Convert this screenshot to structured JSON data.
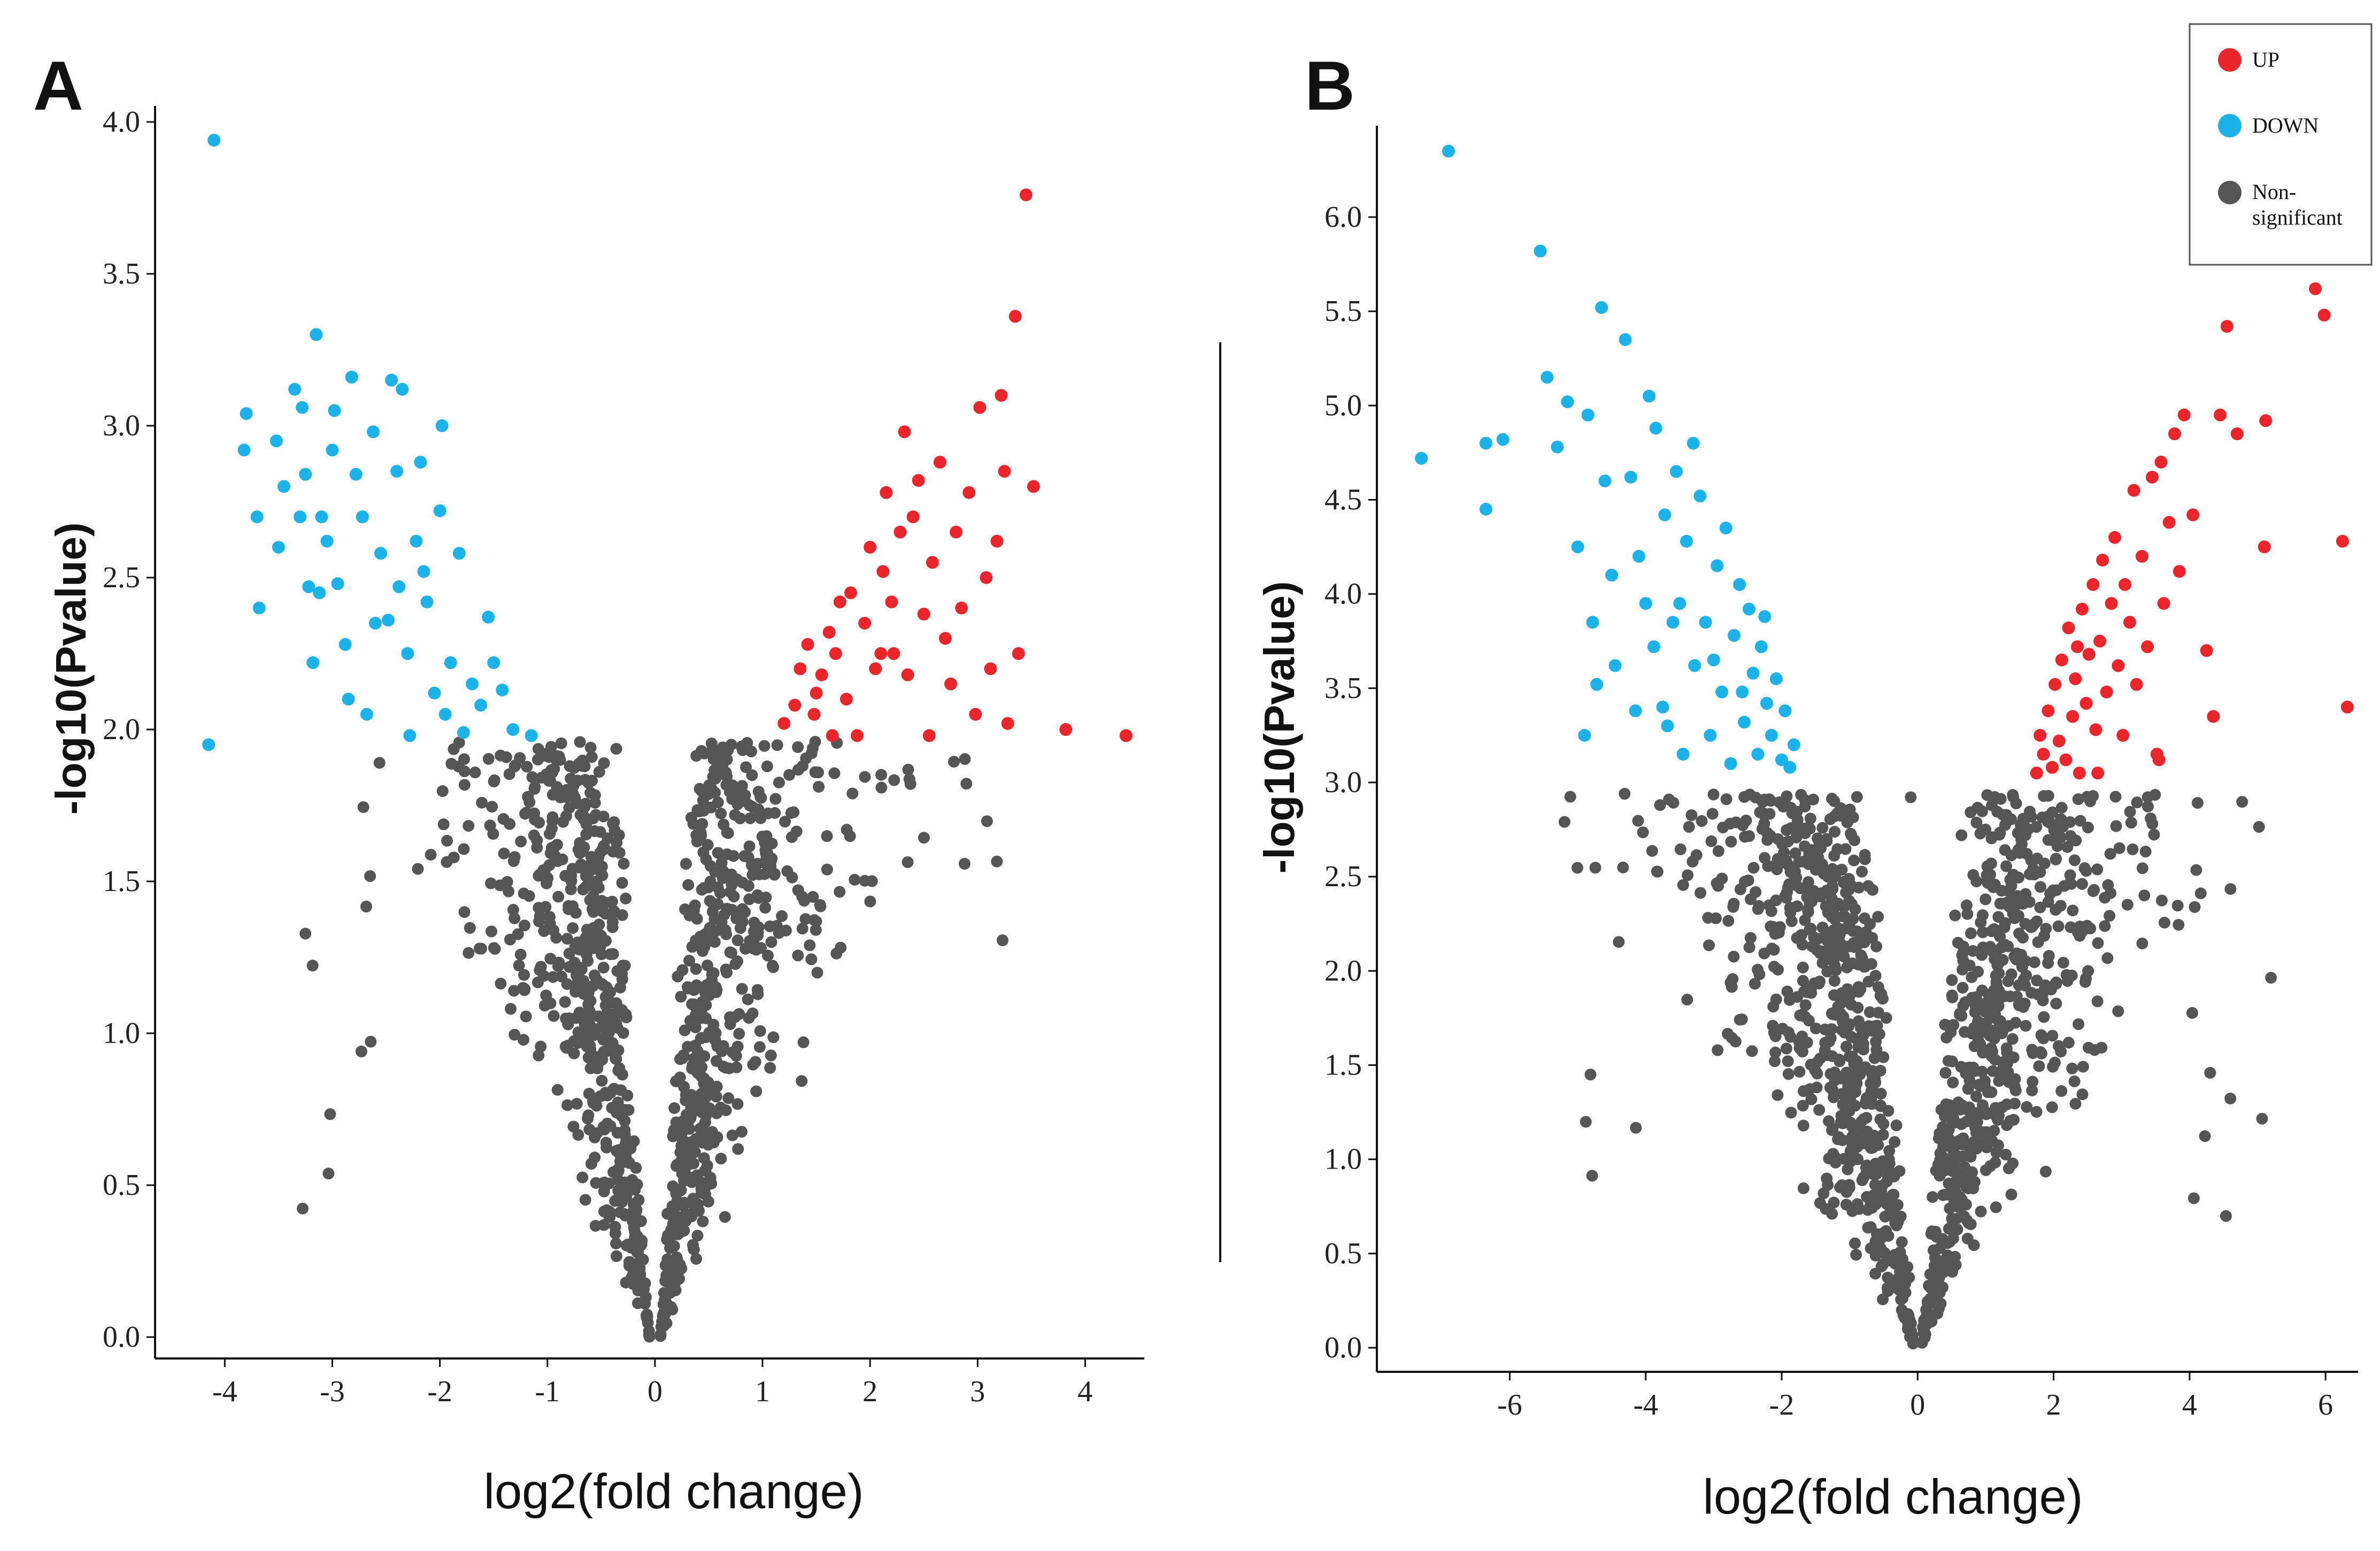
{
  "colors": {
    "up": "#E8262B",
    "down": "#1DB2E8",
    "ns": "#555555",
    "axis": "#111111"
  },
  "legend": {
    "items": [
      {
        "label": "UP",
        "color": "#E8262B"
      },
      {
        "label": "DOWN",
        "color": "#1DB2E8"
      },
      {
        "label": "Non-significant",
        "color": "#555555"
      }
    ]
  },
  "chart_data": [
    {
      "panel": "A",
      "type": "scatter",
      "subtype": "volcano",
      "xlabel": "log2(fold change)",
      "ylabel": "-log10(Pvalue)",
      "xlim": [
        -4.3,
        4.5
      ],
      "ylim": [
        0,
        4.0
      ],
      "xticks": [
        "-4",
        "-3",
        "-2",
        "-1",
        "0",
        "1",
        "2",
        "3",
        "4"
      ],
      "yticks": [
        "0.0",
        "0.5",
        "1.0",
        "1.5",
        "2.0",
        "2.5",
        "3.0",
        "3.5",
        "4.0"
      ],
      "significance_threshold_y": 2.0,
      "series": [
        {
          "category": "DOWN",
          "points": [
            [
              -4.1,
              3.94
            ],
            [
              -4.15,
              1.95
            ],
            [
              -3.8,
              3.04
            ],
            [
              -3.82,
              2.92
            ],
            [
              -3.7,
              2.7
            ],
            [
              -3.68,
              2.4
            ],
            [
              -3.52,
              2.95
            ],
            [
              -3.45,
              2.8
            ],
            [
              -3.5,
              2.6
            ],
            [
              -3.35,
              3.12
            ],
            [
              -3.28,
              3.06
            ],
            [
              -3.25,
              2.84
            ],
            [
              -3.3,
              2.7
            ],
            [
              -3.22,
              2.47
            ],
            [
              -3.15,
              3.3
            ],
            [
              -3.12,
              2.45
            ],
            [
              -3.18,
              2.22
            ],
            [
              -3.05,
              2.62
            ],
            [
              -3.0,
              2.92
            ],
            [
              -2.98,
              3.05
            ],
            [
              -2.95,
              2.48
            ],
            [
              -2.88,
              2.28
            ],
            [
              -2.82,
              3.16
            ],
            [
              -2.78,
              2.84
            ],
            [
              -2.72,
              2.7
            ],
            [
              -2.68,
              2.05
            ],
            [
              -2.62,
              2.98
            ],
            [
              -2.55,
              2.58
            ],
            [
              -2.48,
              2.36
            ],
            [
              -2.45,
              3.15
            ],
            [
              -2.4,
              2.85
            ],
            [
              -2.38,
              2.47
            ],
            [
              -2.35,
              3.12
            ],
            [
              -2.3,
              2.25
            ],
            [
              -2.28,
              1.98
            ],
            [
              -2.22,
              2.62
            ],
            [
              -2.18,
              2.88
            ],
            [
              -2.12,
              2.42
            ],
            [
              -2.05,
              2.12
            ],
            [
              -2.0,
              2.72
            ],
            [
              -1.98,
              3.0
            ],
            [
              -1.95,
              2.05
            ],
            [
              -1.9,
              2.22
            ],
            [
              -1.82,
              2.58
            ],
            [
              -1.78,
              1.99
            ],
            [
              -1.7,
              2.15
            ],
            [
              -1.62,
              2.08
            ],
            [
              -1.55,
              2.37
            ],
            [
              -1.5,
              2.22
            ],
            [
              -1.42,
              2.13
            ],
            [
              -1.32,
              2.0
            ],
            [
              -1.15,
              1.98
            ],
            [
              -2.85,
              2.1
            ],
            [
              -3.1,
              2.7
            ],
            [
              -2.6,
              2.35
            ],
            [
              -2.15,
              2.52
            ]
          ]
        },
        {
          "category": "UP",
          "points": [
            [
              1.2,
              2.02
            ],
            [
              1.3,
              2.08
            ],
            [
              1.35,
              2.2
            ],
            [
              1.42,
              2.28
            ],
            [
              1.48,
              2.05
            ],
            [
              1.5,
              2.12
            ],
            [
              1.55,
              2.18
            ],
            [
              1.62,
              2.32
            ],
            [
              1.68,
              2.25
            ],
            [
              1.72,
              2.42
            ],
            [
              1.78,
              2.1
            ],
            [
              1.82,
              2.45
            ],
            [
              1.88,
              1.98
            ],
            [
              1.95,
              2.35
            ],
            [
              2.0,
              2.6
            ],
            [
              2.05,
              2.2
            ],
            [
              2.12,
              2.52
            ],
            [
              2.15,
              2.78
            ],
            [
              2.2,
              2.42
            ],
            [
              2.22,
              2.25
            ],
            [
              2.28,
              2.65
            ],
            [
              2.32,
              2.98
            ],
            [
              2.35,
              2.18
            ],
            [
              2.4,
              2.7
            ],
            [
              2.45,
              2.82
            ],
            [
              2.5,
              2.38
            ],
            [
              2.55,
              1.98
            ],
            [
              2.58,
              2.55
            ],
            [
              2.65,
              2.88
            ],
            [
              2.7,
              2.3
            ],
            [
              2.75,
              2.15
            ],
            [
              2.8,
              2.65
            ],
            [
              2.85,
              2.4
            ],
            [
              2.92,
              2.78
            ],
            [
              2.98,
              2.05
            ],
            [
              3.02,
              3.06
            ],
            [
              3.08,
              2.5
            ],
            [
              3.12,
              2.2
            ],
            [
              3.18,
              2.62
            ],
            [
              3.22,
              3.1
            ],
            [
              3.25,
              2.85
            ],
            [
              3.28,
              2.02
            ],
            [
              3.35,
              3.36
            ],
            [
              3.38,
              2.25
            ],
            [
              3.45,
              3.76
            ],
            [
              3.52,
              2.8
            ],
            [
              3.82,
              2.0
            ],
            [
              4.38,
              1.98
            ],
            [
              1.65,
              1.98
            ],
            [
              2.1,
              2.25
            ]
          ]
        },
        {
          "category": "Non-significant",
          "generated": true,
          "count": 1100,
          "note": "dense V-shaped cloud of grey points below -log10(Pvalue)=2 across log2(fold change) from about -3.3 to 3"
        }
      ]
    },
    {
      "panel": "B",
      "type": "scatter",
      "subtype": "volcano",
      "xlabel": "log2(fold change)",
      "ylabel": "-log10(Pvalue)",
      "xlim": [
        -7.6,
        6.4
      ],
      "ylim": [
        0,
        6.4
      ],
      "xticks": [
        "-6",
        "-4",
        "-2",
        "0",
        "2",
        "4",
        "6"
      ],
      "yticks": [
        "0.0",
        "0.5",
        "1.0",
        "1.5",
        "2.0",
        "2.5",
        "3.0",
        "3.5",
        "4.0",
        "4.5",
        "5.0",
        "5.5",
        "6.0"
      ],
      "significance_threshold_y": 3.0,
      "series": [
        {
          "category": "DOWN",
          "points": [
            [
              -7.3,
              4.72
            ],
            [
              -6.9,
              6.35
            ],
            [
              -6.35,
              4.8
            ],
            [
              -6.35,
              4.45
            ],
            [
              -6.1,
              4.82
            ],
            [
              -5.55,
              5.82
            ],
            [
              -5.45,
              5.15
            ],
            [
              -5.3,
              4.78
            ],
            [
              -5.15,
              5.02
            ],
            [
              -4.85,
              4.95
            ],
            [
              -4.78,
              3.85
            ],
            [
              -4.72,
              3.52
            ],
            [
              -4.65,
              5.52
            ],
            [
              -4.5,
              4.1
            ],
            [
              -4.3,
              5.35
            ],
            [
              -4.22,
              4.62
            ],
            [
              -4.1,
              4.2
            ],
            [
              -3.95,
              5.05
            ],
            [
              -3.88,
              3.72
            ],
            [
              -3.85,
              4.88
            ],
            [
              -3.72,
              4.42
            ],
            [
              -3.68,
              3.3
            ],
            [
              -3.55,
              4.65
            ],
            [
              -3.5,
              3.95
            ],
            [
              -3.45,
              3.15
            ],
            [
              -3.4,
              4.28
            ],
            [
              -3.28,
              3.62
            ],
            [
              -3.2,
              4.52
            ],
            [
              -3.12,
              3.85
            ],
            [
              -3.05,
              3.25
            ],
            [
              -2.95,
              4.15
            ],
            [
              -2.88,
              3.48
            ],
            [
              -2.82,
              4.35
            ],
            [
              -2.75,
              3.1
            ],
            [
              -2.7,
              3.78
            ],
            [
              -2.62,
              4.05
            ],
            [
              -2.55,
              3.32
            ],
            [
              -2.48,
              3.92
            ],
            [
              -2.42,
              3.58
            ],
            [
              -2.35,
              3.15
            ],
            [
              -2.3,
              3.72
            ],
            [
              -2.22,
              3.42
            ],
            [
              -2.15,
              3.25
            ],
            [
              -2.08,
              3.55
            ],
            [
              -2.0,
              3.12
            ],
            [
              -1.95,
              3.38
            ],
            [
              -1.88,
              3.08
            ],
            [
              -1.82,
              3.2
            ],
            [
              -4.9,
              3.25
            ],
            [
              -4.45,
              3.62
            ],
            [
              -4.0,
              3.95
            ],
            [
              -3.75,
              3.4
            ],
            [
              -3.3,
              4.8
            ],
            [
              -3.0,
              3.65
            ],
            [
              -2.58,
              3.48
            ],
            [
              -2.25,
              3.88
            ],
            [
              -4.6,
              4.6
            ],
            [
              -5.0,
              4.25
            ],
            [
              -4.15,
              3.38
            ],
            [
              -3.6,
              3.85
            ]
          ]
        },
        {
          "category": "UP",
          "points": [
            [
              1.75,
              3.05
            ],
            [
              1.8,
              3.25
            ],
            [
              1.85,
              3.15
            ],
            [
              1.92,
              3.38
            ],
            [
              1.98,
              3.08
            ],
            [
              2.02,
              3.52
            ],
            [
              2.08,
              3.22
            ],
            [
              2.12,
              3.65
            ],
            [
              2.18,
              3.12
            ],
            [
              2.22,
              3.82
            ],
            [
              2.28,
              3.35
            ],
            [
              2.32,
              3.55
            ],
            [
              2.38,
              3.05
            ],
            [
              2.42,
              3.92
            ],
            [
              2.48,
              3.42
            ],
            [
              2.52,
              3.68
            ],
            [
              2.58,
              4.05
            ],
            [
              2.62,
              3.28
            ],
            [
              2.68,
              3.75
            ],
            [
              2.72,
              4.18
            ],
            [
              2.78,
              3.48
            ],
            [
              2.85,
              3.95
            ],
            [
              2.9,
              4.3
            ],
            [
              2.95,
              3.62
            ],
            [
              3.02,
              3.25
            ],
            [
              3.05,
              4.05
            ],
            [
              3.12,
              3.85
            ],
            [
              3.18,
              4.55
            ],
            [
              3.22,
              3.52
            ],
            [
              3.3,
              4.2
            ],
            [
              3.38,
              3.72
            ],
            [
              3.45,
              4.62
            ],
            [
              3.52,
              3.15
            ],
            [
              3.58,
              4.7
            ],
            [
              3.62,
              3.95
            ],
            [
              3.7,
              4.38
            ],
            [
              3.78,
              4.85
            ],
            [
              3.85,
              4.12
            ],
            [
              3.92,
              4.95
            ],
            [
              4.05,
              4.42
            ],
            [
              4.25,
              3.7
            ],
            [
              4.45,
              4.95
            ],
            [
              4.55,
              5.42
            ],
            [
              4.7,
              4.85
            ],
            [
              5.12,
              4.92
            ],
            [
              5.1,
              4.25
            ],
            [
              5.85,
              5.62
            ],
            [
              5.98,
              5.48
            ],
            [
              6.25,
              4.28
            ],
            [
              6.32,
              3.4
            ],
            [
              2.35,
              3.72
            ],
            [
              2.65,
              3.05
            ],
            [
              3.55,
              3.12
            ],
            [
              4.35,
              3.35
            ]
          ]
        },
        {
          "category": "Non-significant",
          "generated": true,
          "count": 1300,
          "note": "dense V-shaped cloud of grey points below -log10(Pvalue)=3 across log2(fold change) from about -5.4 to 5"
        }
      ]
    }
  ]
}
